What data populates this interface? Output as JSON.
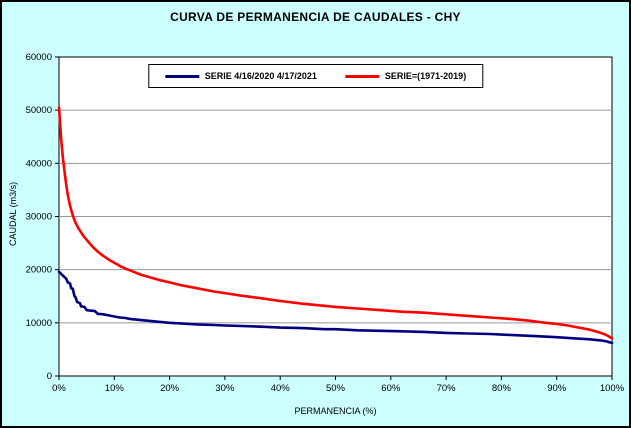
{
  "chart_data": {
    "type": "line",
    "title": "CURVA DE PERMANENCIA DE CAUDALES - CHY",
    "xlabel": "PERMANENCIA (%)",
    "ylabel": "CAUDAL (m3/s)",
    "xlim": [
      0,
      100
    ],
    "ylim": [
      0,
      60000
    ],
    "x_ticks": [
      0,
      10,
      20,
      30,
      40,
      50,
      60,
      70,
      80,
      90,
      100
    ],
    "x_tick_labels": [
      "0%",
      "10%",
      "20%",
      "30%",
      "40%",
      "50%",
      "60%",
      "70%",
      "80%",
      "90%",
      "100%"
    ],
    "y_ticks": [
      0,
      10000,
      20000,
      30000,
      40000,
      50000,
      60000
    ],
    "y_tick_labels": [
      "0",
      "10000",
      "20000",
      "30000",
      "40000",
      "50000",
      "60000"
    ],
    "grid": "horizontal",
    "grid_color": "#969696",
    "legend_position": "top-center",
    "background_color": "#CCFFFF",
    "plot_background": "#FFFFFF",
    "series": [
      {
        "name": "SERIE 4/16/2020 4/17/2021",
        "color": "#000080",
        "points": [
          [
            0,
            19600
          ],
          [
            0.3,
            19300
          ],
          [
            0.6,
            19000
          ],
          [
            1,
            18600
          ],
          [
            1.3,
            18300
          ],
          [
            1.6,
            17600
          ],
          [
            2,
            17400
          ],
          [
            2.2,
            16500
          ],
          [
            2.5,
            16400
          ],
          [
            2.8,
            15000
          ],
          [
            3,
            14800
          ],
          [
            3.3,
            13900
          ],
          [
            3.8,
            13700
          ],
          [
            4,
            13100
          ],
          [
            4.6,
            13000
          ],
          [
            5,
            12400
          ],
          [
            5.6,
            12300
          ],
          [
            6.5,
            12200
          ],
          [
            7,
            11700
          ],
          [
            8,
            11600
          ],
          [
            9,
            11400
          ],
          [
            10,
            11200
          ],
          [
            11,
            11000
          ],
          [
            12,
            10900
          ],
          [
            13,
            10700
          ],
          [
            14,
            10600
          ],
          [
            15,
            10500
          ],
          [
            16,
            10400
          ],
          [
            18,
            10200
          ],
          [
            20,
            10000
          ],
          [
            22,
            9900
          ],
          [
            25,
            9700
          ],
          [
            28,
            9600
          ],
          [
            30,
            9500
          ],
          [
            33,
            9400
          ],
          [
            36,
            9300
          ],
          [
            40,
            9100
          ],
          [
            44,
            9000
          ],
          [
            48,
            8800
          ],
          [
            50,
            8800
          ],
          [
            54,
            8600
          ],
          [
            58,
            8500
          ],
          [
            62,
            8400
          ],
          [
            66,
            8300
          ],
          [
            70,
            8100
          ],
          [
            74,
            8000
          ],
          [
            78,
            7900
          ],
          [
            82,
            7700
          ],
          [
            86,
            7500
          ],
          [
            90,
            7300
          ],
          [
            93,
            7100
          ],
          [
            96,
            6900
          ],
          [
            98,
            6700
          ],
          [
            99,
            6500
          ],
          [
            100,
            6200
          ]
        ]
      },
      {
        "name": "SERIE=(1971-2019)",
        "color": "#FF0000",
        "points": [
          [
            0,
            50500
          ],
          [
            0.2,
            47500
          ],
          [
            0.4,
            44500
          ],
          [
            0.7,
            41000
          ],
          [
            1,
            38500
          ],
          [
            1.3,
            36000
          ],
          [
            1.6,
            34000
          ],
          [
            2,
            32000
          ],
          [
            2.5,
            30200
          ],
          [
            3,
            28800
          ],
          [
            3.5,
            27800
          ],
          [
            4,
            27000
          ],
          [
            4.5,
            26200
          ],
          [
            5,
            25600
          ],
          [
            6,
            24400
          ],
          [
            7,
            23400
          ],
          [
            8,
            22600
          ],
          [
            9,
            21900
          ],
          [
            10,
            21300
          ],
          [
            11,
            20700
          ],
          [
            12,
            20200
          ],
          [
            13,
            19800
          ],
          [
            14,
            19400
          ],
          [
            15,
            19000
          ],
          [
            16,
            18700
          ],
          [
            18,
            18100
          ],
          [
            20,
            17600
          ],
          [
            22,
            17100
          ],
          [
            25,
            16500
          ],
          [
            28,
            15900
          ],
          [
            30,
            15600
          ],
          [
            33,
            15100
          ],
          [
            36,
            14700
          ],
          [
            40,
            14100
          ],
          [
            44,
            13600
          ],
          [
            48,
            13200
          ],
          [
            50,
            13000
          ],
          [
            54,
            12700
          ],
          [
            58,
            12400
          ],
          [
            62,
            12100
          ],
          [
            66,
            11900
          ],
          [
            70,
            11600
          ],
          [
            74,
            11300
          ],
          [
            78,
            11000
          ],
          [
            82,
            10700
          ],
          [
            85,
            10400
          ],
          [
            88,
            10000
          ],
          [
            90,
            9800
          ],
          [
            92,
            9500
          ],
          [
            94,
            9100
          ],
          [
            96,
            8700
          ],
          [
            98,
            8100
          ],
          [
            99,
            7700
          ],
          [
            100,
            7100
          ]
        ]
      }
    ]
  }
}
